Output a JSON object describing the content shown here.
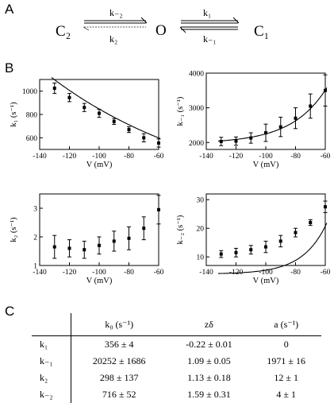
{
  "panel_labels": {
    "a": "A",
    "b": "B",
    "c": "C"
  },
  "scheme": {
    "state_c2": "C₂",
    "state_o": "O",
    "state_c1": "C₁",
    "rate_km2": "k₋₂",
    "rate_k2": "k₂",
    "rate_k1": "k₁",
    "rate_km1": "k₋₁"
  },
  "chart_data": [
    {
      "type": "scatter",
      "ylabel": "k₁ (s⁻¹)",
      "xlabel": "V (mV)",
      "xlim": [
        -140,
        -60
      ],
      "ylim": [
        500,
        1100
      ],
      "xticks": [
        -140,
        -120,
        -100,
        -80,
        -60
      ],
      "yticks": [
        600,
        800,
        1000
      ],
      "points": [
        {
          "x": -130,
          "y": 1025,
          "err": 45
        },
        {
          "x": -120,
          "y": 945,
          "err": 35
        },
        {
          "x": -110,
          "y": 860,
          "err": 35
        },
        {
          "x": -100,
          "y": 810,
          "err": 35
        },
        {
          "x": -90,
          "y": 740,
          "err": 25
        },
        {
          "x": -80,
          "y": 670,
          "err": 25
        },
        {
          "x": -70,
          "y": 600,
          "err": 35
        },
        {
          "x": -60,
          "y": 555,
          "err": 35
        }
      ],
      "fit": {
        "k0": 356,
        "zdelta": -0.22,
        "a": 0
      }
    },
    {
      "type": "scatter",
      "ylabel": "k₋₁ (s⁻¹)",
      "xlabel": "V (mV)",
      "xlim": [
        -140,
        -60
      ],
      "ylim": [
        1800,
        4000
      ],
      "xticks": [
        -140,
        -120,
        -100,
        -80,
        -60
      ],
      "yticks": [
        2000,
        3000,
        4000
      ],
      "points": [
        {
          "x": -130,
          "y": 2030,
          "err": 120
        },
        {
          "x": -120,
          "y": 2040,
          "err": 120
        },
        {
          "x": -110,
          "y": 2130,
          "err": 150
        },
        {
          "x": -100,
          "y": 2280,
          "err": 250
        },
        {
          "x": -90,
          "y": 2450,
          "err": 280
        },
        {
          "x": -80,
          "y": 2700,
          "err": 300
        },
        {
          "x": -70,
          "y": 3050,
          "err": 350
        },
        {
          "x": -60,
          "y": 3500,
          "err": 450
        }
      ],
      "fit": {
        "k0": 20252,
        "zdelta": 1.09,
        "a": 1971
      }
    },
    {
      "type": "scatter",
      "ylabel": "k₂ (s⁻¹)",
      "xlabel": "V (mV)",
      "xlim": [
        -140,
        -60
      ],
      "ylim": [
        1,
        3.5
      ],
      "xticks": [
        -140,
        -120,
        -100,
        -80,
        -60
      ],
      "yticks": [
        1,
        2,
        3
      ],
      "points": [
        {
          "x": -130,
          "y": 1.65,
          "err": 0.4
        },
        {
          "x": -120,
          "y": 1.6,
          "err": 0.3
        },
        {
          "x": -110,
          "y": 1.55,
          "err": 0.3
        },
        {
          "x": -100,
          "y": 1.7,
          "err": 0.3
        },
        {
          "x": -90,
          "y": 1.85,
          "err": 0.35
        },
        {
          "x": -80,
          "y": 1.95,
          "err": 0.4
        },
        {
          "x": -70,
          "y": 2.3,
          "err": 0.4
        },
        {
          "x": -60,
          "y": 2.95,
          "err": 0.5
        }
      ],
      "fit": {
        "k0": 298,
        "zdelta": 1.13,
        "a": 12
      }
    },
    {
      "type": "scatter",
      "ylabel": "k₋₂ (s⁻¹)",
      "xlabel": "V (mV)",
      "xlim": [
        -140,
        -60
      ],
      "ylim": [
        7,
        32
      ],
      "xticks": [
        -140,
        -120,
        -100,
        -80,
        -60
      ],
      "yticks": [
        10,
        20,
        30
      ],
      "points": [
        {
          "x": -130,
          "y": 11,
          "err": 1.2
        },
        {
          "x": -120,
          "y": 11.5,
          "err": 1.5
        },
        {
          "x": -110,
          "y": 12.5,
          "err": 1.5
        },
        {
          "x": -100,
          "y": 13.5,
          "err": 2
        },
        {
          "x": -90,
          "y": 15.5,
          "err": 2
        },
        {
          "x": -80,
          "y": 18.5,
          "err": 1.5
        },
        {
          "x": -70,
          "y": 22,
          "err": 1
        },
        {
          "x": -60,
          "y": 27.5,
          "err": 2
        }
      ],
      "fit": {
        "k0": 716,
        "zdelta": 1.59,
        "a": 4
      }
    }
  ],
  "table": {
    "headers": [
      "",
      "k₀ (s⁻¹)",
      "zδ",
      "a (s⁻¹)"
    ],
    "rows": [
      [
        "k₁",
        "356 ± 4",
        "-0.22 ± 0.01",
        "0"
      ],
      [
        "k₋₁",
        "20252 ± 1686",
        "1.09 ± 0.05",
        "1971 ± 16"
      ],
      [
        "k₂",
        "298 ± 137",
        "1.13 ± 0.18",
        "12 ± 1"
      ],
      [
        "k₋₂",
        "716 ± 52",
        "1.59 ± 0.31",
        "4 ± 1"
      ]
    ]
  }
}
